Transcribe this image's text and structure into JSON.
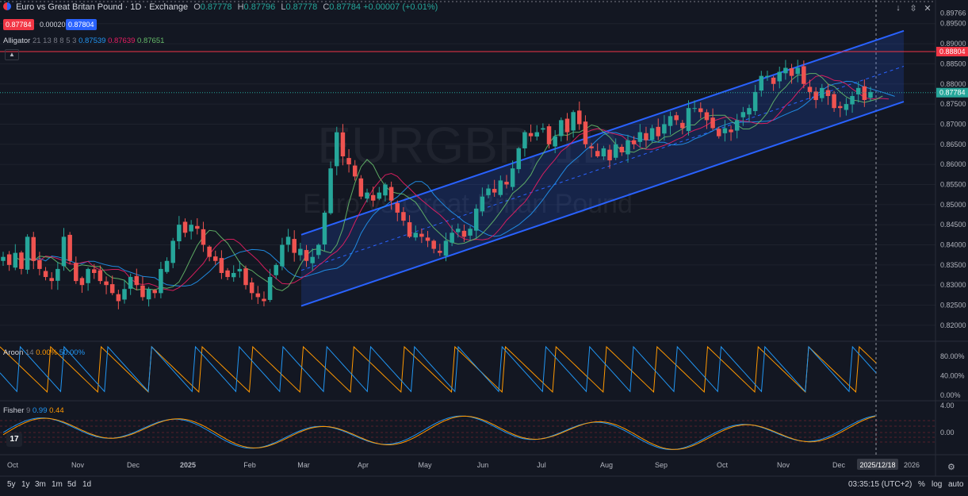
{
  "header": {
    "title": "Euro vs Great Britan Pound · 1D · Exchange",
    "o_label": "O",
    "o_val": "0.87778",
    "h_label": "H",
    "h_val": "0.87796",
    "l_label": "L",
    "l_val": "0.87778",
    "c_label": "C",
    "c_val": "0.87784",
    "change": "+0.00007 (+0.01%)",
    "sell_price": "0.87784",
    "spread": "0.00020",
    "buy_price": "0.87804"
  },
  "watermark": {
    "symbol": "EURGBP, 1D",
    "name": "Euro vs Great Britan Pound"
  },
  "alligator": {
    "label": "Alligator",
    "params": "21 13 8 8 5 3",
    "jaw": "0.87539",
    "teeth": "0.87639",
    "lips": "0.87651"
  },
  "aroon": {
    "label": "Aroon",
    "param": "14",
    "up": "0.00%",
    "down": "50.00%"
  },
  "fisher": {
    "label": "Fisher",
    "param": "9",
    "v1": "0.99",
    "v2": "0.44"
  },
  "icons": {
    "arrow": "down-arrow-icon",
    "collapse": "collapse-icon",
    "close": "close-icon",
    "settings": "gear-icon",
    "logo": "tradingview-logo-icon"
  },
  "bottom": {
    "timeframes": [
      "5y",
      "1y",
      "3m",
      "1m",
      "5d",
      "1d"
    ],
    "clock": "03:35:15 (UTC+2)",
    "percent": "%",
    "log": "log",
    "auto": "auto"
  },
  "colors": {
    "background": "#131722",
    "up": "#26a69a",
    "down": "#ef5350",
    "channel": "#2962ff",
    "resistance": "#f23645",
    "jaw": "#2196f3",
    "teeth": "#e91e63",
    "lips": "#66bb6a",
    "aroon_up": "#ff9800",
    "aroon_down": "#2196f3"
  },
  "chart_data": {
    "type": "candlestick",
    "symbol": "EURGBP",
    "timeframe": "1D",
    "x_labels": [
      "Oct",
      "Nov",
      "Dec",
      "2025",
      "Feb",
      "Mar",
      "Apr",
      "May",
      "Jun",
      "Jul",
      "Aug",
      "Sep",
      "Oct",
      "Nov",
      "Dec",
      "2025/12/18",
      "2026"
    ],
    "price_axis": {
      "ticks": [
        "0.89766",
        "0.89500",
        "0.89000",
        "0.88500",
        "0.88000",
        "0.87500",
        "0.87000",
        "0.86500",
        "0.86000",
        "0.85500",
        "0.85000",
        "0.84500",
        "0.84000",
        "0.83500",
        "0.83000",
        "0.82500",
        "0.82000"
      ],
      "range": [
        0.818,
        0.8985
      ],
      "current_price_label": "0.87784",
      "resistance_label": "0.88804"
    },
    "horizontal_line": {
      "price": 0.88804
    },
    "close_series": [
      0.837,
      0.835,
      0.838,
      0.834,
      0.842,
      0.836,
      0.834,
      0.832,
      0.831,
      0.834,
      0.842,
      0.836,
      0.831,
      0.83,
      0.834,
      0.833,
      0.831,
      0.83,
      0.828,
      0.826,
      0.829,
      0.832,
      0.83,
      0.827,
      0.829,
      0.828,
      0.834,
      0.836,
      0.841,
      0.845,
      0.843,
      0.845,
      0.844,
      0.84,
      0.837,
      0.836,
      0.833,
      0.832,
      0.833,
      0.834,
      0.83,
      0.828,
      0.827,
      0.826,
      0.832,
      0.835,
      0.84,
      0.842,
      0.838,
      0.839,
      0.836,
      0.837,
      0.84,
      0.848,
      0.859,
      0.868,
      0.862,
      0.86,
      0.857,
      0.852,
      0.853,
      0.851,
      0.853,
      0.855,
      0.851,
      0.848,
      0.846,
      0.842,
      0.843,
      0.842,
      0.841,
      0.839,
      0.838,
      0.841,
      0.843,
      0.844,
      0.842,
      0.844,
      0.849,
      0.852,
      0.854,
      0.853,
      0.856,
      0.855,
      0.859,
      0.864,
      0.868,
      0.867,
      0.868,
      0.869,
      0.865,
      0.867,
      0.871,
      0.868,
      0.873,
      0.87,
      0.865,
      0.864,
      0.862,
      0.864,
      0.861,
      0.865,
      0.863,
      0.866,
      0.865,
      0.868,
      0.866,
      0.869,
      0.867,
      0.87,
      0.872,
      0.871,
      0.869,
      0.874,
      0.874,
      0.873,
      0.871,
      0.869,
      0.867,
      0.869,
      0.868,
      0.871,
      0.873,
      0.874,
      0.878,
      0.882,
      0.882,
      0.88,
      0.883,
      0.884,
      0.882,
      0.884,
      0.88,
      0.878,
      0.876,
      0.879,
      0.877,
      0.874,
      0.874,
      0.875,
      0.877,
      0.879,
      0.876,
      0.878
    ],
    "channel": {
      "upper": {
        "from": {
          "x": "Mar",
          "y": 0.8425
        },
        "to": {
          "x": "2025/12/18",
          "y": 0.8932
        }
      },
      "lower": {
        "from": {
          "x": "Mar",
          "y": 0.8248
        },
        "to": {
          "x": "2025/12/18",
          "y": 0.8756
        }
      }
    },
    "aroon_axis": [
      "80.00%",
      "40.00%",
      "0.00%"
    ],
    "fisher_axis": [
      "4.00",
      "0.00"
    ]
  }
}
